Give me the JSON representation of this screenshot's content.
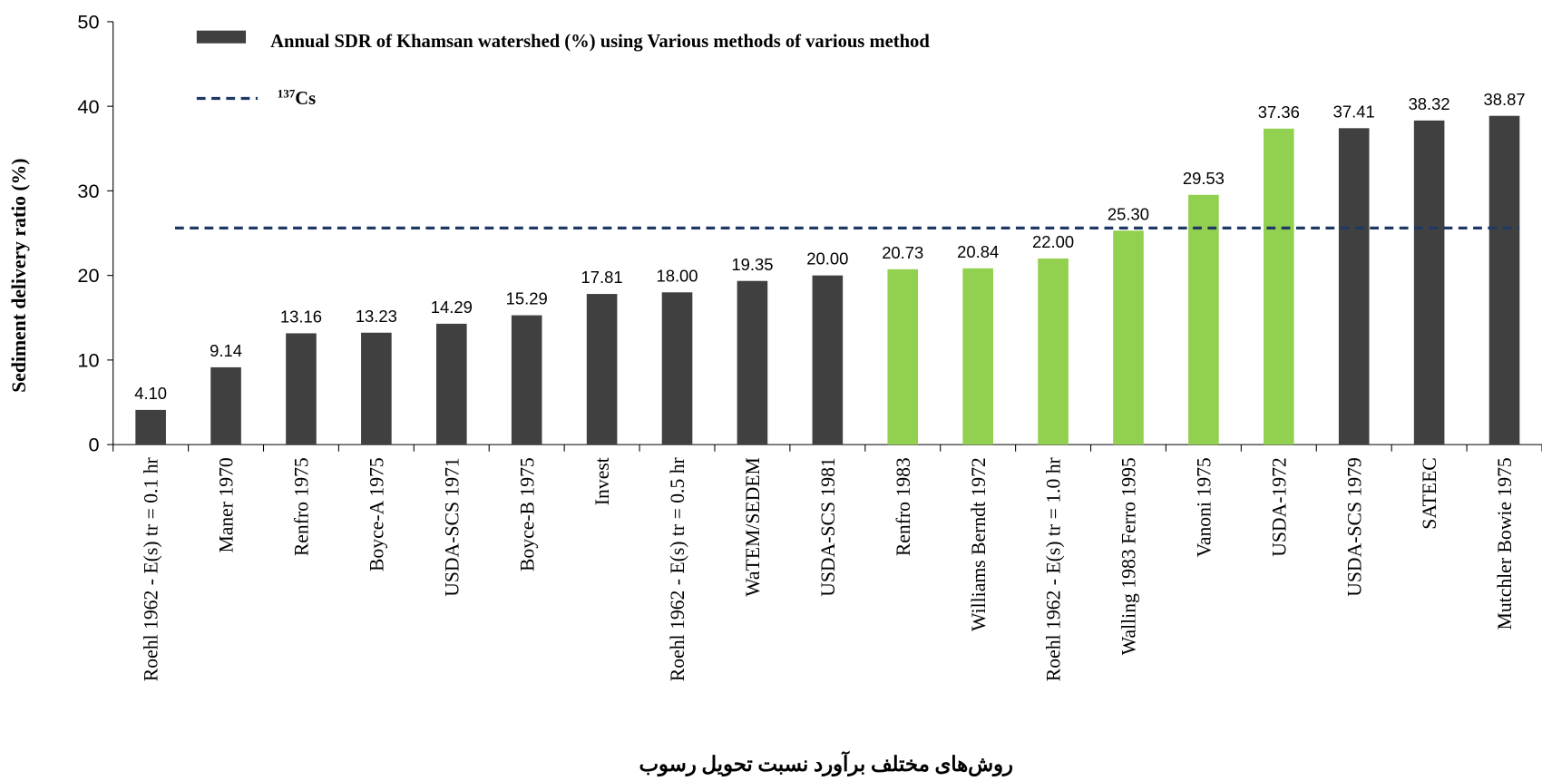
{
  "chart_data": {
    "type": "bar",
    "x_label": "روش‌های مختلف برآورد نسبت تحویل رسوب",
    "y_label": "Sediment delivery ratio (%)",
    "categories": [
      "Roehl 1962 - E(s) tr = 0.1 hr",
      "Maner 1970",
      "Renfro 1975",
      "Boyce-A 1975",
      "USDA-SCS 1971",
      "Boyce-B 1975",
      "Invest",
      "Roehl 1962 - E(s) tr = 0.5 hr",
      "WaTEM/SEDEM",
      "USDA-SCS 1981",
      "Renfro 1983",
      "Williams Berndt 1972",
      "Roehl 1962 - E(s) tr = 1.0 hr",
      "Walling 1983 Ferro 1995",
      "Vanoni 1975",
      "USDA-1972",
      "USDA-SCS 1979",
      "SATEEC",
      "Mutchler Bowie 1975"
    ],
    "series": [
      {
        "name": "Annual SDR of Khamsan watershed (%) using Various methods of various method",
        "color": "#404040",
        "values": [
          4.1,
          9.14,
          13.16,
          13.23,
          14.29,
          15.29,
          17.81,
          18,
          19.35,
          20,
          20.73,
          20.84,
          22,
          25.3,
          29.53,
          37.36,
          37.41,
          38.32,
          38.87
        ],
        "value_labels": [
          "4.10",
          "9.14",
          "13.16",
          "13.23",
          "14.29",
          "15.29",
          "17.81",
          "18.00",
          "19.35",
          "20.00",
          "20.73",
          "20.84",
          "22.00",
          "25.30",
          "29.53",
          "37.36",
          "37.41",
          "38.32",
          "38.87"
        ],
        "colors": [
          "#404040",
          "#404040",
          "#404040",
          "#404040",
          "#404040",
          "#404040",
          "#404040",
          "#404040",
          "#404040",
          "#404040",
          "#92d050",
          "#92d050",
          "#92d050",
          "#92d050",
          "#92d050",
          "#92d050",
          "#404040",
          "#404040",
          "#404040"
        ]
      }
    ],
    "reference_line": {
      "superscript": "137",
      "name": "Cs",
      "value": 25.6,
      "color": "#1f3864"
    },
    "ylim": [
      0,
      50
    ],
    "yticks": [
      0,
      10,
      20,
      30,
      40,
      50
    ]
  }
}
